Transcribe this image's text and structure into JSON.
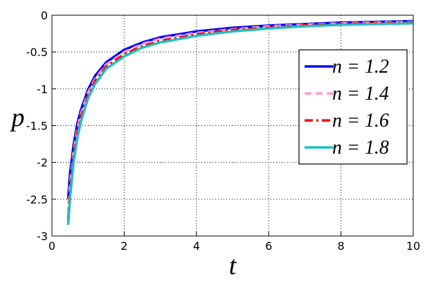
{
  "chart_data": {
    "type": "line",
    "x_label": "t",
    "y_label": "p",
    "x": [
      0.45,
      0.5,
      0.6,
      0.7,
      0.8,
      1,
      1.2,
      1.5,
      2,
      2.5,
      3,
      4,
      5,
      6,
      7,
      8,
      9,
      10
    ],
    "series": [
      {
        "name": "n = 1.2",
        "color": "#0000ff",
        "line_style": "solid",
        "values": [
          -2.5,
          -2.15,
          -1.76,
          -1.48,
          -1.29,
          -1.01,
          -0.82,
          -0.64,
          -0.47,
          -0.37,
          -0.3,
          -0.22,
          -0.17,
          -0.14,
          -0.12,
          -0.1,
          -0.09,
          -0.08
        ]
      },
      {
        "name": "n = 1.4",
        "color": "#ff99cc",
        "line_style": "dashed",
        "values": [
          -2.7,
          -2.3,
          -1.85,
          -1.55,
          -1.34,
          -1.05,
          -0.86,
          -0.67,
          -0.5,
          -0.39,
          -0.32,
          -0.24,
          -0.19,
          -0.15,
          -0.13,
          -0.11,
          -0.1,
          -0.09
        ]
      },
      {
        "name": "n = 1.6",
        "color": "#ff0000",
        "line_style": "dashdot",
        "values": [
          -2.8,
          -2.4,
          -1.92,
          -1.61,
          -1.39,
          -1.09,
          -0.89,
          -0.7,
          -0.53,
          -0.42,
          -0.35,
          -0.26,
          -0.2,
          -0.17,
          -0.14,
          -0.12,
          -0.11,
          -0.1
        ]
      },
      {
        "name": "n = 1.8",
        "color": "#1fbfbf",
        "line_style": "solid",
        "values": [
          -2.85,
          -2.5,
          -2.0,
          -1.68,
          -1.45,
          -1.13,
          -0.93,
          -0.73,
          -0.56,
          -0.44,
          -0.37,
          -0.28,
          -0.22,
          -0.18,
          -0.15,
          -0.13,
          -0.12,
          -0.11
        ]
      }
    ],
    "xlim": [
      0,
      10
    ],
    "xticks": [
      0,
      2,
      4,
      6,
      8,
      10
    ],
    "ylim": [
      -3,
      0
    ],
    "yticks": [
      -3,
      -2.5,
      -2,
      -1.5,
      -1,
      -0.5,
      0
    ],
    "grid": true,
    "legend_position": "northeast"
  }
}
